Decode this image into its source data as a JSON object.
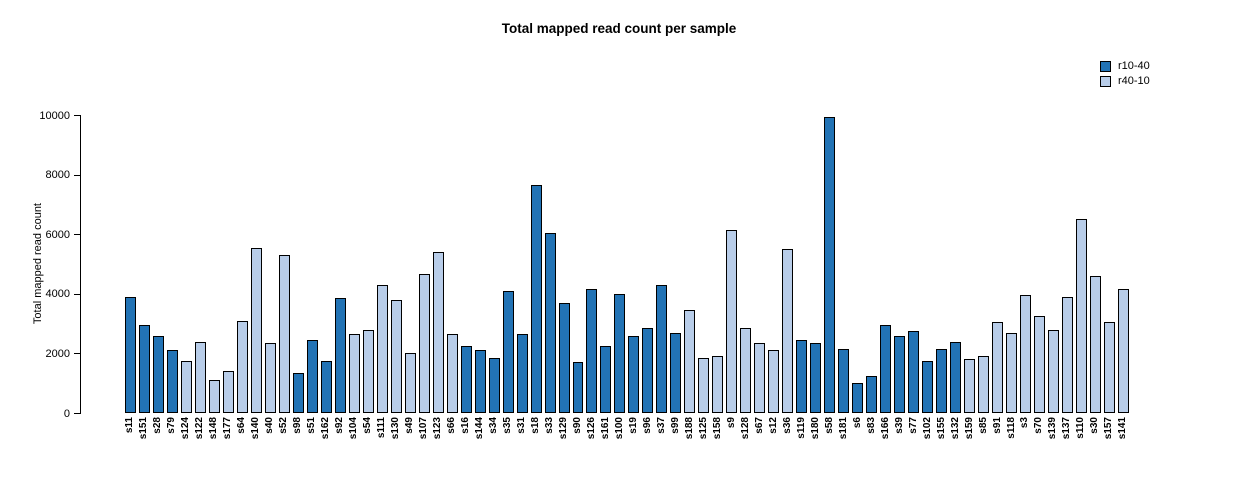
{
  "title": "Total mapped read count per sample",
  "chart_data": {
    "type": "bar",
    "title": "Total mapped read count per sample",
    "xlabel": "",
    "ylabel": "Total mapped read count",
    "ylim": [
      0,
      10000
    ],
    "yticks": [
      0,
      2000,
      4000,
      6000,
      8000,
      10000
    ],
    "grid": false,
    "legend_position": "top-right",
    "series": [
      {
        "name": "r10-40",
        "color": "#2273B5"
      },
      {
        "name": "r40-10",
        "color": "#B8CDE9"
      }
    ],
    "bars": [
      {
        "label": "s11",
        "value": 3900,
        "series": "r10-40"
      },
      {
        "label": "s151",
        "value": 2950,
        "series": "r10-40"
      },
      {
        "label": "s28",
        "value": 2600,
        "series": "r10-40"
      },
      {
        "label": "s79",
        "value": 2100,
        "series": "r10-40"
      },
      {
        "label": "s124",
        "value": 1750,
        "series": "r40-10"
      },
      {
        "label": "s122",
        "value": 2400,
        "series": "r40-10"
      },
      {
        "label": "s148",
        "value": 1100,
        "series": "r40-10"
      },
      {
        "label": "s177",
        "value": 1400,
        "series": "r40-10"
      },
      {
        "label": "s64",
        "value": 3100,
        "series": "r40-10"
      },
      {
        "label": "s140",
        "value": 5550,
        "series": "r40-10"
      },
      {
        "label": "s40",
        "value": 2350,
        "series": "r40-10"
      },
      {
        "label": "s52",
        "value": 5300,
        "series": "r40-10"
      },
      {
        "label": "s98",
        "value": 1350,
        "series": "r10-40"
      },
      {
        "label": "s51",
        "value": 2450,
        "series": "r10-40"
      },
      {
        "label": "s162",
        "value": 1750,
        "series": "r10-40"
      },
      {
        "label": "s92",
        "value": 3850,
        "series": "r10-40"
      },
      {
        "label": "s104",
        "value": 2650,
        "series": "r40-10"
      },
      {
        "label": "s54",
        "value": 2800,
        "series": "r40-10"
      },
      {
        "label": "s111",
        "value": 4300,
        "series": "r40-10"
      },
      {
        "label": "s130",
        "value": 3800,
        "series": "r40-10"
      },
      {
        "label": "s49",
        "value": 2000,
        "series": "r40-10"
      },
      {
        "label": "s107",
        "value": 4650,
        "series": "r40-10"
      },
      {
        "label": "s123",
        "value": 5400,
        "series": "r40-10"
      },
      {
        "label": "s66",
        "value": 2650,
        "series": "r40-10"
      },
      {
        "label": "s16",
        "value": 2250,
        "series": "r10-40"
      },
      {
        "label": "s144",
        "value": 2100,
        "series": "r10-40"
      },
      {
        "label": "s34",
        "value": 1850,
        "series": "r10-40"
      },
      {
        "label": "s35",
        "value": 4100,
        "series": "r10-40"
      },
      {
        "label": "s31",
        "value": 2650,
        "series": "r10-40"
      },
      {
        "label": "s18",
        "value": 7650,
        "series": "r10-40"
      },
      {
        "label": "s33",
        "value": 6050,
        "series": "r10-40"
      },
      {
        "label": "s129",
        "value": 3700,
        "series": "r10-40"
      },
      {
        "label": "s90",
        "value": 1700,
        "series": "r10-40"
      },
      {
        "label": "s126",
        "value": 4150,
        "series": "r10-40"
      },
      {
        "label": "s161",
        "value": 2250,
        "series": "r10-40"
      },
      {
        "label": "s100",
        "value": 4000,
        "series": "r10-40"
      },
      {
        "label": "s19",
        "value": 2600,
        "series": "r10-40"
      },
      {
        "label": "s96",
        "value": 2850,
        "series": "r10-40"
      },
      {
        "label": "s37",
        "value": 4300,
        "series": "r10-40"
      },
      {
        "label": "s99",
        "value": 2700,
        "series": "r10-40"
      },
      {
        "label": "s188",
        "value": 3450,
        "series": "r40-10"
      },
      {
        "label": "s125",
        "value": 1850,
        "series": "r40-10"
      },
      {
        "label": "s158",
        "value": 1900,
        "series": "r40-10"
      },
      {
        "label": "s9",
        "value": 6150,
        "series": "r40-10"
      },
      {
        "label": "s128",
        "value": 2850,
        "series": "r40-10"
      },
      {
        "label": "s67",
        "value": 2350,
        "series": "r40-10"
      },
      {
        "label": "s12",
        "value": 2100,
        "series": "r40-10"
      },
      {
        "label": "s36",
        "value": 5500,
        "series": "r40-10"
      },
      {
        "label": "s119",
        "value": 2450,
        "series": "r10-40"
      },
      {
        "label": "s180",
        "value": 2350,
        "series": "r10-40"
      },
      {
        "label": "s58",
        "value": 9950,
        "series": "r10-40"
      },
      {
        "label": "s181",
        "value": 2150,
        "series": "r10-40"
      },
      {
        "label": "s6",
        "value": 1000,
        "series": "r10-40"
      },
      {
        "label": "s83",
        "value": 1250,
        "series": "r10-40"
      },
      {
        "label": "s166",
        "value": 2950,
        "series": "r10-40"
      },
      {
        "label": "s39",
        "value": 2600,
        "series": "r10-40"
      },
      {
        "label": "s77",
        "value": 2750,
        "series": "r10-40"
      },
      {
        "label": "s102",
        "value": 1750,
        "series": "r10-40"
      },
      {
        "label": "s155",
        "value": 2150,
        "series": "r10-40"
      },
      {
        "label": "s132",
        "value": 2400,
        "series": "r10-40"
      },
      {
        "label": "s159",
        "value": 1800,
        "series": "r40-10"
      },
      {
        "label": "s85",
        "value": 1900,
        "series": "r40-10"
      },
      {
        "label": "s91",
        "value": 3050,
        "series": "r40-10"
      },
      {
        "label": "s118",
        "value": 2700,
        "series": "r40-10"
      },
      {
        "label": "s3",
        "value": 3950,
        "series": "r40-10"
      },
      {
        "label": "s70",
        "value": 3250,
        "series": "r40-10"
      },
      {
        "label": "s139",
        "value": 2800,
        "series": "r40-10"
      },
      {
        "label": "s137",
        "value": 3900,
        "series": "r40-10"
      },
      {
        "label": "s110",
        "value": 6500,
        "series": "r40-10"
      },
      {
        "label": "s30",
        "value": 4600,
        "series": "r40-10"
      },
      {
        "label": "s157",
        "value": 3050,
        "series": "r40-10"
      },
      {
        "label": "s141",
        "value": 4150,
        "series": "r40-10"
      }
    ]
  }
}
